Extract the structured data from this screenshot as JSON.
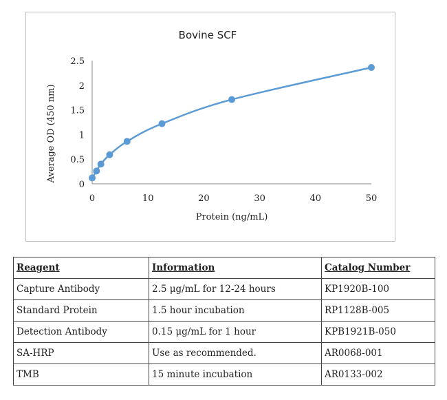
{
  "chart_data": {
    "type": "scatter",
    "title": "Bovine SCF",
    "xlabel": "Protein (ng/mL)",
    "ylabel": "Average OD (450 nm)",
    "xlim": [
      0,
      50
    ],
    "ylim": [
      0,
      2.5
    ],
    "x_ticks": [
      0,
      10,
      20,
      30,
      40,
      50
    ],
    "y_ticks": [
      "0",
      "0.5",
      "1",
      "1.5",
      "2",
      "2.5"
    ],
    "series": [
      {
        "name": "Bovine SCF",
        "x": [
          0,
          0.78,
          1.56,
          3.13,
          6.25,
          12.5,
          25,
          50
        ],
        "y": [
          0.12,
          0.26,
          0.4,
          0.59,
          0.86,
          1.22,
          1.71,
          2.36
        ],
        "color": "#5b9bd5",
        "trendline": "smooth"
      }
    ],
    "grid": false,
    "legend": "none"
  },
  "table": {
    "headers": [
      "Reagent",
      "Information",
      "Catalog Number"
    ],
    "rows": [
      [
        "Capture Antibody",
        "2.5 μg/mL for 12-24 hours",
        "KP1920B-100"
      ],
      [
        "Standard Protein",
        "1.5 hour incubation",
        "RP1128B-005"
      ],
      [
        "Detection Antibody",
        "0.15 μg/mL for 1 hour",
        "KPB1921B-050"
      ],
      [
        "SA-HRP",
        "Use as recommended.",
        "AR0068-001"
      ],
      [
        "TMB",
        "15 minute incubation",
        "AR0133-002"
      ]
    ]
  }
}
